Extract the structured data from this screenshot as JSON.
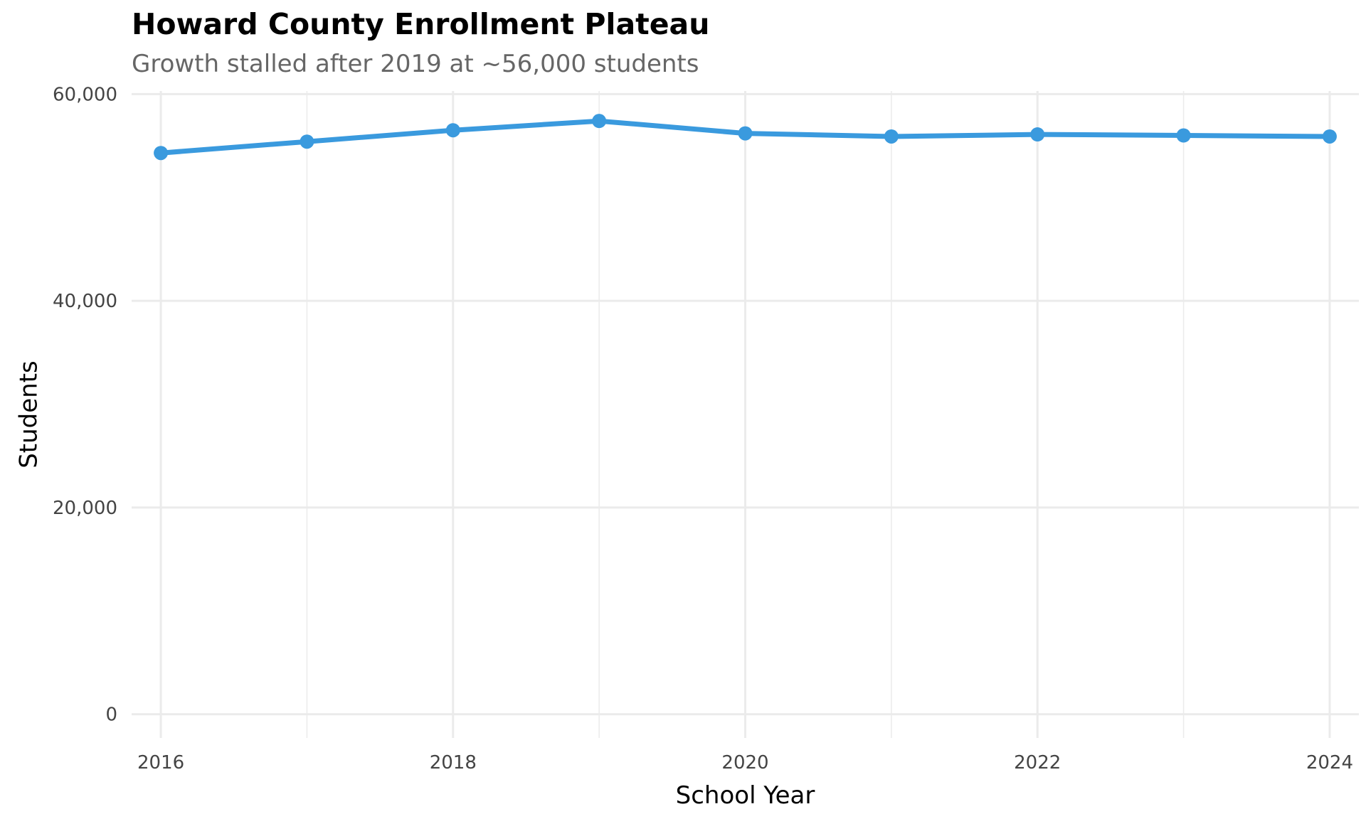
{
  "chart_data": {
    "type": "line",
    "title": "Howard County Enrollment Plateau",
    "subtitle": "Growth stalled after 2019 at ~56,000 students",
    "xlabel": "School Year",
    "ylabel": "Students",
    "x": [
      2016,
      2017,
      2018,
      2019,
      2020,
      2021,
      2022,
      2023,
      2024
    ],
    "series": [
      {
        "values": [
          54300,
          55400,
          56500,
          57400,
          56200,
          55900,
          56100,
          56000,
          55900
        ]
      }
    ],
    "xlim": [
      2015.8,
      2024.2
    ],
    "ylim": [
      -2300,
      60300
    ],
    "x_ticks": [
      2016,
      2018,
      2020,
      2022,
      2024
    ],
    "x_tick_labels": [
      "2016",
      "2018",
      "2020",
      "2022",
      "2024"
    ],
    "x_minor_ticks": [
      2017,
      2019,
      2021,
      2023
    ],
    "y_ticks": [
      0,
      20000,
      40000,
      60000
    ],
    "y_tick_labels": [
      "0",
      "20,000",
      "40,000",
      "60,000"
    ],
    "grid": true,
    "legend": "none",
    "colors": {
      "line": "#3a9ade",
      "grid": "#ebebeb",
      "title": "#000000",
      "subtitle": "#666666",
      "tick_text": "#444444"
    }
  }
}
